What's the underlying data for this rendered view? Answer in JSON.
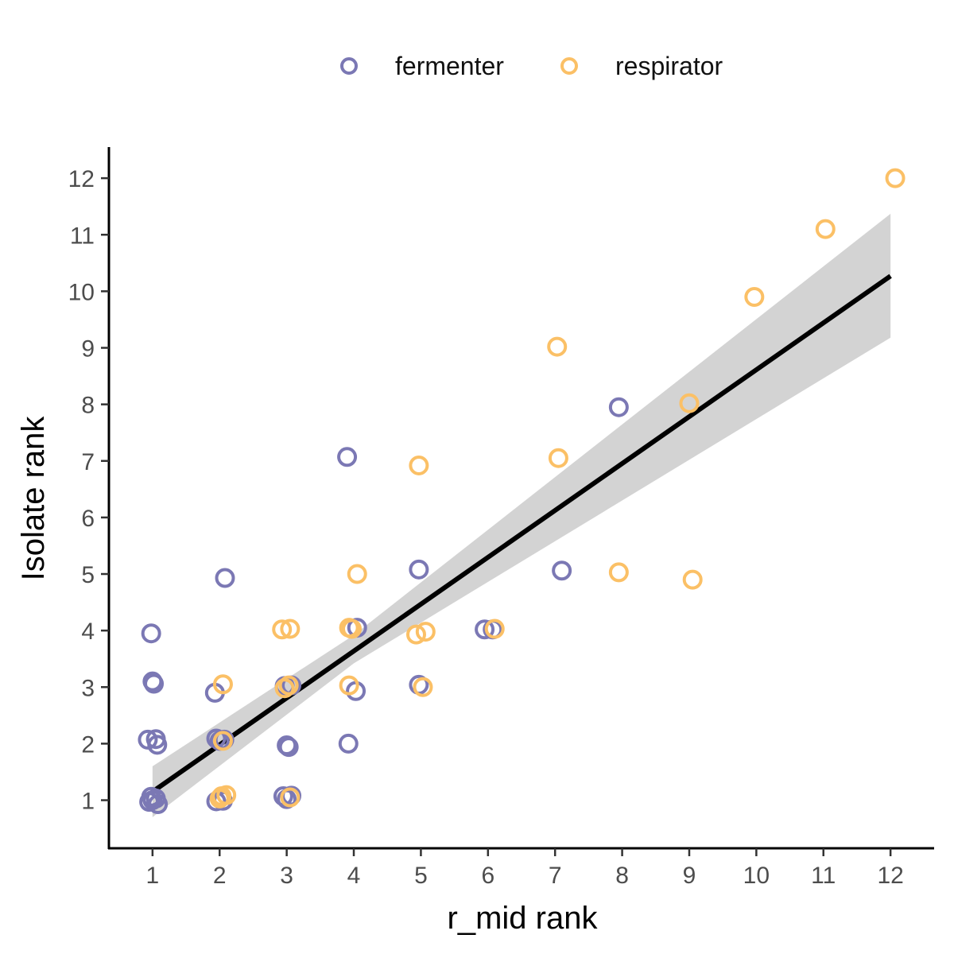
{
  "legend": {
    "items": [
      {
        "label": "fermenter",
        "color": "#7b78b4"
      },
      {
        "label": "respirator",
        "color": "#fbc066"
      }
    ]
  },
  "chart_data": {
    "type": "scatter",
    "xlabel": "r_mid rank",
    "ylabel": "Isolate rank",
    "xlim": [
      0.35,
      12.65
    ],
    "ylim": [
      0.15,
      12.55
    ],
    "xticks": [
      1,
      2,
      3,
      4,
      5,
      6,
      7,
      8,
      9,
      10,
      11,
      12
    ],
    "yticks": [
      1,
      2,
      3,
      4,
      5,
      6,
      7,
      8,
      9,
      10,
      11,
      12
    ],
    "grid": false,
    "legend_position": "top",
    "marker": "open-circle",
    "series": [
      {
        "name": "fermenter",
        "color": "#7b78b4",
        "points": [
          [
            0.95,
            0.97
          ],
          [
            1.05,
            1.03
          ],
          [
            1.0,
            1.0
          ],
          [
            1.08,
            0.93
          ],
          [
            0.98,
            1.06
          ],
          [
            0.93,
            2.07
          ],
          [
            1.05,
            2.08
          ],
          [
            1.07,
            1.98
          ],
          [
            1.0,
            3.1
          ],
          [
            1.02,
            3.06
          ],
          [
            0.98,
            3.95
          ],
          [
            1.95,
            0.98
          ],
          [
            2.05,
            0.99
          ],
          [
            2.0,
            2.05
          ],
          [
            1.95,
            2.09
          ],
          [
            2.07,
            2.07
          ],
          [
            1.93,
            2.9
          ],
          [
            2.08,
            4.93
          ],
          [
            2.95,
            1.07
          ],
          [
            3.07,
            1.08
          ],
          [
            3.0,
            1.02
          ],
          [
            3.03,
            1.94
          ],
          [
            3.0,
            1.97
          ],
          [
            2.97,
            3.02
          ],
          [
            3.07,
            3.03
          ],
          [
            4.05,
            4.05
          ],
          [
            4.03,
            2.93
          ],
          [
            3.92,
            2.0
          ],
          [
            3.9,
            7.07
          ],
          [
            4.97,
            5.08
          ],
          [
            4.97,
            3.04
          ],
          [
            5.95,
            4.02
          ],
          [
            6.07,
            4.02
          ],
          [
            7.1,
            5.06
          ],
          [
            7.95,
            7.95
          ]
        ]
      },
      {
        "name": "respirator",
        "color": "#fbc066",
        "points": [
          [
            2.03,
            1.07
          ],
          [
            2.1,
            1.09
          ],
          [
            2.0,
            1.03
          ],
          [
            2.05,
            2.05
          ],
          [
            2.05,
            3.05
          ],
          [
            2.93,
            4.02
          ],
          [
            3.05,
            4.03
          ],
          [
            3.03,
            3.03
          ],
          [
            2.97,
            2.98
          ],
          [
            3.05,
            1.05
          ],
          [
            3.93,
            3.03
          ],
          [
            3.93,
            4.05
          ],
          [
            3.97,
            4.03
          ],
          [
            4.05,
            5.0
          ],
          [
            4.93,
            3.93
          ],
          [
            5.07,
            3.98
          ],
          [
            5.03,
            3.0
          ],
          [
            4.97,
            6.92
          ],
          [
            6.1,
            4.03
          ],
          [
            7.03,
            9.02
          ],
          [
            7.05,
            7.05
          ],
          [
            7.95,
            5.03
          ],
          [
            9.0,
            8.02
          ],
          [
            9.05,
            4.9
          ],
          [
            9.97,
            9.9
          ],
          [
            11.03,
            11.1
          ],
          [
            12.07,
            12.0
          ]
        ]
      }
    ],
    "fit": {
      "type": "linear",
      "color": "#000000",
      "ci_color": "#d3d3d3",
      "line": {
        "x": [
          1,
          12
        ],
        "y": [
          1.15,
          10.27
        ]
      },
      "ci_upper": {
        "x": [
          1,
          4,
          12
        ],
        "y": [
          1.6,
          3.92,
          11.37
        ]
      },
      "ci_lower": {
        "x": [
          1,
          4,
          12
        ],
        "y": [
          0.7,
          3.42,
          9.18
        ]
      }
    }
  }
}
